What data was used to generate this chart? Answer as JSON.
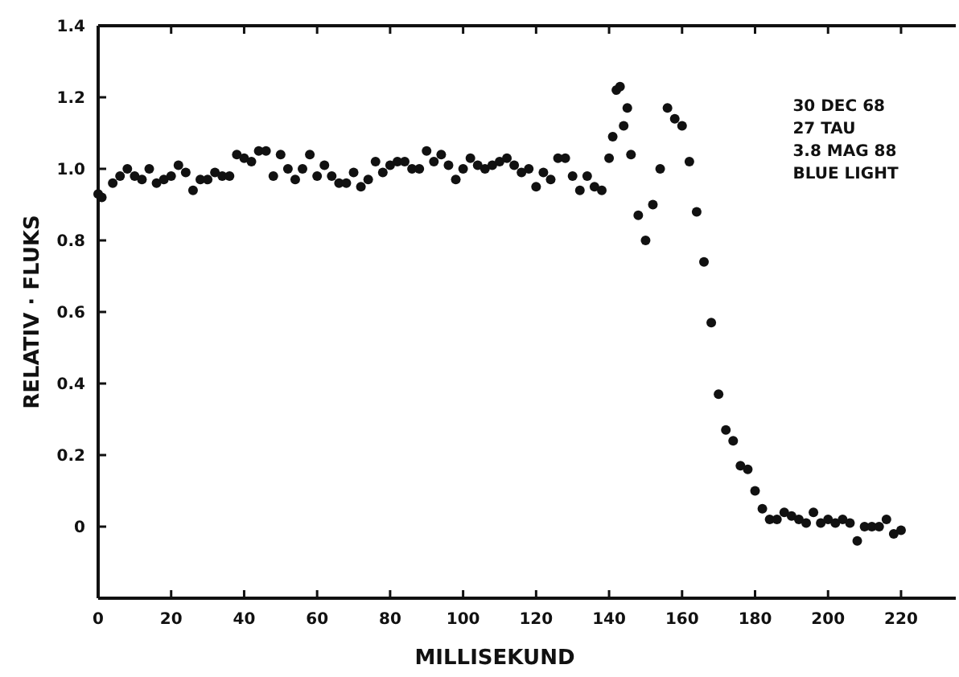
{
  "chart_data": {
    "type": "scatter",
    "xlabel": "MILLISEKUND",
    "ylabel": "RELATIV · FLUKS",
    "annotations": [
      "30 DEC 68",
      "27 TAU",
      "3.8 MAG 88",
      "BLUE LIGHT"
    ],
    "xlim": [
      0,
      235
    ],
    "xticks": [
      0,
      20,
      40,
      60,
      80,
      100,
      120,
      140,
      160,
      180,
      200,
      220
    ],
    "ylim": [
      -0.2,
      1.4
    ],
    "yticks": [
      0,
      0.2,
      0.4,
      0.6,
      0.8,
      {
        "value": 1,
        "label": "1.0"
      },
      1.2,
      1.4
    ],
    "grid": false,
    "marker": "circle",
    "series": [
      {
        "color": "#111111",
        "x": [
          0,
          1,
          4,
          6,
          8,
          10,
          12,
          14,
          16,
          18,
          20,
          22,
          24,
          26,
          28,
          30,
          32,
          34,
          36,
          38,
          40,
          42,
          44,
          46,
          48,
          50,
          52,
          54,
          56,
          58,
          60,
          62,
          64,
          66,
          68,
          70,
          72,
          74,
          76,
          78,
          80,
          82,
          84,
          86,
          88,
          90,
          92,
          94,
          96,
          98,
          100,
          102,
          104,
          106,
          108,
          110,
          112,
          114,
          116,
          118,
          120,
          122,
          124,
          126,
          128,
          130,
          132,
          134,
          136,
          138,
          140,
          141,
          142,
          143,
          144,
          145,
          146,
          148,
          150,
          152,
          154,
          156,
          158,
          160,
          162,
          164,
          166,
          168,
          170,
          172,
          174,
          176,
          178,
          180,
          182,
          184,
          186,
          188,
          190,
          192,
          194,
          196,
          198,
          200,
          202,
          204,
          206,
          208,
          210,
          212,
          214,
          216,
          218,
          220
        ],
        "values": [
          0.93,
          0.92,
          0.96,
          0.98,
          1.0,
          0.98,
          0.97,
          1.0,
          0.96,
          0.97,
          0.98,
          1.01,
          0.99,
          0.94,
          0.97,
          0.97,
          0.99,
          0.98,
          0.98,
          1.04,
          1.03,
          1.02,
          1.05,
          1.05,
          0.98,
          1.04,
          1.0,
          0.97,
          1.0,
          1.04,
          0.98,
          1.01,
          0.98,
          0.96,
          0.96,
          0.99,
          0.95,
          0.97,
          1.02,
          0.99,
          1.01,
          1.02,
          1.02,
          1.0,
          1.0,
          1.05,
          1.02,
          1.04,
          1.01,
          0.97,
          1.0,
          1.03,
          1.01,
          1.0,
          1.01,
          1.02,
          1.03,
          1.01,
          0.99,
          1.0,
          0.95,
          0.99,
          0.97,
          1.03,
          1.03,
          0.98,
          0.94,
          0.98,
          0.95,
          0.94,
          1.03,
          1.09,
          1.22,
          1.23,
          1.12,
          1.17,
          1.04,
          0.87,
          0.8,
          0.9,
          1.0,
          1.17,
          1.14,
          1.12,
          1.02,
          0.88,
          0.74,
          0.57,
          0.37,
          0.27,
          0.24,
          0.17,
          0.16,
          0.1,
          0.05,
          0.02,
          0.02,
          0.04,
          0.03,
          0.02,
          0.01,
          0.04,
          0.01,
          0.02,
          0.01,
          0.02,
          0.01,
          -0.04,
          0.0,
          0.0,
          0.0,
          0.02,
          -0.02,
          -0.01
        ]
      }
    ]
  }
}
